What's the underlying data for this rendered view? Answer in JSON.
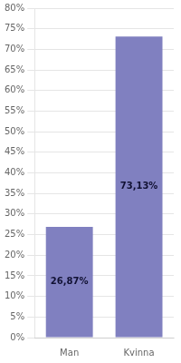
{
  "chart_data": {
    "type": "bar",
    "categories": [
      "Man",
      "Kvinna"
    ],
    "values": [
      26.87,
      73.13
    ],
    "value_labels": [
      "26,87%",
      "73,13%"
    ],
    "data_labels": true,
    "color": "#8080c0",
    "ylim": [
      0,
      80
    ],
    "yticks": [
      {
        "value": 0,
        "label": "0%"
      },
      {
        "value": 5,
        "label": "5%"
      },
      {
        "value": 10,
        "label": "10%"
      },
      {
        "value": 15,
        "label": "15%"
      },
      {
        "value": 20,
        "label": "20%"
      },
      {
        "value": 25,
        "label": "25%"
      },
      {
        "value": 30,
        "label": "30%"
      },
      {
        "value": 35,
        "label": "35%"
      },
      {
        "value": 40,
        "label": "40%"
      },
      {
        "value": 45,
        "label": "45%"
      },
      {
        "value": 50,
        "label": "50%"
      },
      {
        "value": 55,
        "label": "55%"
      },
      {
        "value": 60,
        "label": "60%"
      },
      {
        "value": 65,
        "label": "65%"
      },
      {
        "value": 70,
        "label": "70%"
      },
      {
        "value": 75,
        "label": "75%"
      },
      {
        "value": 80,
        "label": "80%"
      }
    ],
    "grid": true
  }
}
